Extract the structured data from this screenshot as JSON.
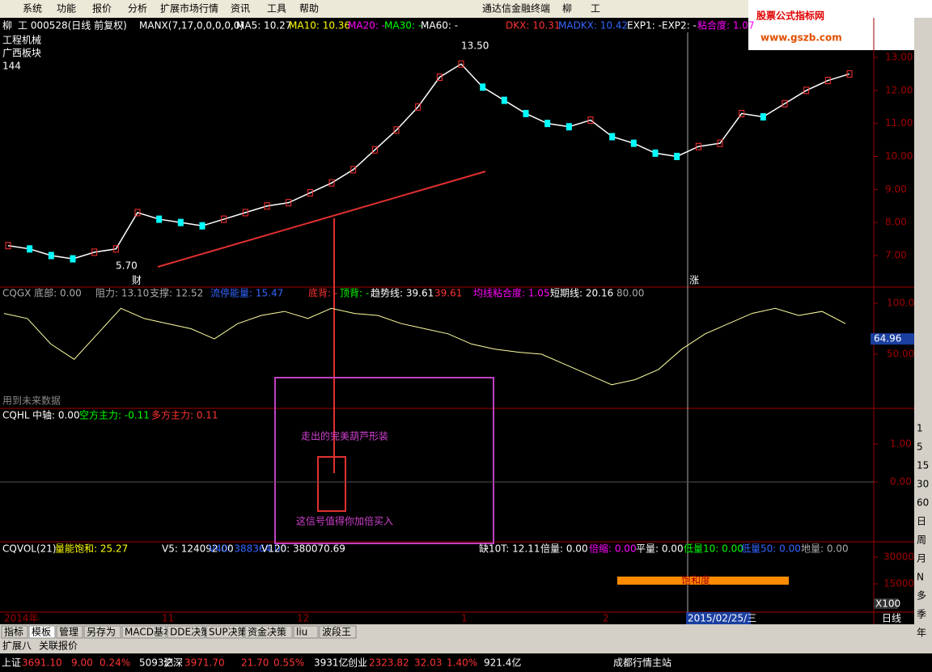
{
  "menu": [
    "系统",
    "功能",
    "报价",
    "分析",
    "扩展市场行情",
    "资讯",
    "工具",
    "帮助"
  ],
  "app_title": "通达信金融终端",
  "app_stock": "柳",
  "app_stock2": "工",
  "watermark": {
    "title": "股票公式指标网",
    "url": "www.gszb.com"
  },
  "main": {
    "header": [
      "柳",
      "工 000528(日线 前复权)",
      "MANX(7,17,0,0,0,0,0)",
      "MA5: 10.27",
      "MA10: 10.36",
      "MA20: -",
      "MA30: -",
      "MA60: -",
      "DKX: 10.31",
      "MADKX: 10.42",
      "EXP1: -",
      "EXP2: -",
      "粘合度: 1.07"
    ],
    "labels": [
      "工程机械",
      "广西板块",
      "144"
    ],
    "annotations": [
      "13.50",
      "5.70",
      "财",
      "涨"
    ],
    "yticks": [
      {
        "value": 13,
        "label": "13.00"
      },
      {
        "value": 12,
        "label": "12.00"
      },
      {
        "value": 11,
        "label": "11.00"
      },
      {
        "value": 10,
        "label": "10.00"
      },
      {
        "value": 9,
        "label": "9.00"
      },
      {
        "value": 8,
        "label": "8.00"
      },
      {
        "value": 7,
        "label": "7.00"
      }
    ],
    "close": [
      7.3,
      7.2,
      7.0,
      6.9,
      7.1,
      7.2,
      8.3,
      8.1,
      8.0,
      7.9,
      8.1,
      8.3,
      8.5,
      8.6,
      8.9,
      9.2,
      9.6,
      10.2,
      10.8,
      11.5,
      12.4,
      12.8,
      12.1,
      11.7,
      11.3,
      11.0,
      10.9,
      11.1,
      10.6,
      10.4,
      10.1,
      10.0,
      10.3,
      10.4,
      11.3,
      11.2,
      11.6,
      12.0,
      12.3,
      12.5
    ]
  },
  "cqgx": {
    "header": [
      "CQGX 底部: 0.00",
      "阻力: 13.10",
      "支撑: 12.52",
      "流停能量: 15.47",
      "底背: -",
      "顶背: -",
      "趋势线: 39.61",
      "39.61",
      "均线粘合度: 1.05",
      "短期线: 20.16",
      "80.00"
    ],
    "note": "用到未来数据",
    "yticks": [
      {
        "value": 100,
        "label": "100.0"
      },
      {
        "value": 50,
        "label": "50.00"
      }
    ],
    "current": 64.96,
    "line": [
      90,
      85,
      60,
      45,
      70,
      95,
      85,
      80,
      75,
      65,
      80,
      88,
      92,
      85,
      95,
      90,
      88,
      80,
      75,
      70,
      60,
      55,
      52,
      50,
      40,
      30,
      20,
      25,
      35,
      55,
      70,
      80,
      90,
      95,
      88,
      92,
      80
    ]
  },
  "cqhl": {
    "header": [
      "CQHL",
      "中轴: 0.00",
      "空方主力: -0.11",
      "多方主力: 0.11"
    ],
    "yticks": [
      {
        "value": 1,
        "label": "1.00"
      },
      {
        "value": 0,
        "label": "0.00"
      }
    ],
    "annotations": [
      "走出的完美葫芦形装",
      "这信号值得你加倍买入"
    ]
  },
  "cqvol": {
    "header": [
      "CQVOL(21)",
      "量能饱和: 25.27",
      "V5: 124092.00",
      "V40: 388364.00",
      "V120: 380070.69",
      "缺10T: 12.11",
      "倍量: 0.00",
      "倍缩: 0.00",
      "平量: 0.00",
      "低量10: 0.00",
      "低量50: 0.00",
      "地量: 0.00"
    ],
    "yticks": [
      30000,
      15000
    ],
    "unit": "X100",
    "band_label": "饱和度"
  },
  "dates": [
    "2014年",
    "11",
    "12",
    "1",
    "2",
    "2015/02/25/三",
    "日线"
  ],
  "tabs": [
    "指标",
    "模板",
    "管理",
    "另存为",
    "MACD基本",
    "DDE决策",
    "SUP决策",
    "资金决策",
    "liu",
    "波段王"
  ],
  "tabs2": [
    "扩展八",
    "关联报价"
  ],
  "periods": [
    "1",
    "5",
    "15",
    "30",
    "60",
    "日",
    "周",
    "月",
    "N",
    "多",
    "季",
    "年"
  ],
  "status": [
    "上证",
    "3691.10",
    "9.00",
    "0.24%",
    "5093亿",
    "沪深",
    "3971.70",
    "21.70",
    "0.55%",
    "3931亿",
    "创业",
    "2323.82",
    "32.03",
    "1.40%",
    "921.4亿",
    "成都行情主站"
  ]
}
